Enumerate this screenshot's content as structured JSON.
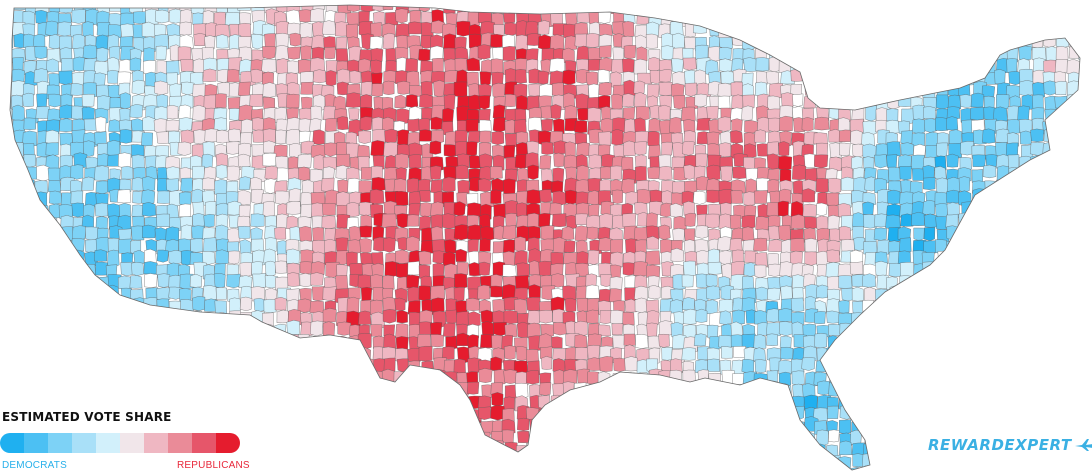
{
  "legend": {
    "title": "ESTIMATED VOTE SHARE",
    "dem_label": "DEMOCRATS",
    "rep_label": "REPUBLICANS",
    "scale_colors": [
      "#1fb0f0",
      "#4cc0f3",
      "#7dd2f6",
      "#a9e0f8",
      "#d2f0fb",
      "#f1e6ea",
      "#efb7c2",
      "#ea8b98",
      "#e6566a",
      "#e51c2e"
    ]
  },
  "brand": {
    "logo_text": "REWARDEXPERT",
    "color": "#3ab0e3"
  },
  "map": {
    "subject": "United States counties, estimated vote share",
    "dem_color": "#1fb0f0",
    "rep_color": "#e51c2e",
    "neutral_color": "#f1e6ea"
  }
}
